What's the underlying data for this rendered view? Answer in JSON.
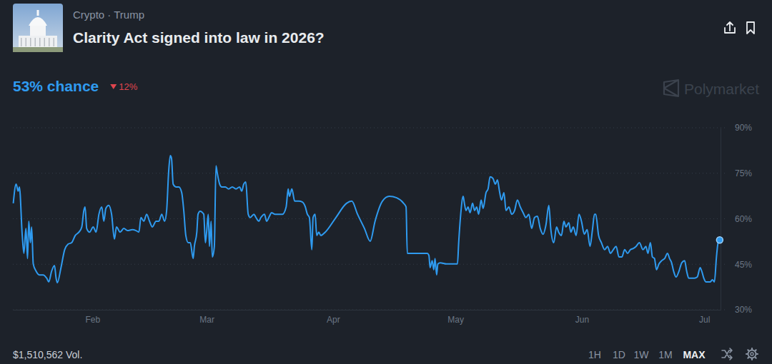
{
  "header": {
    "breadcrumb": "Crypto · Trump",
    "title": "Clarity Act signed into law in 2026?",
    "chance": "53% chance",
    "change": "12%",
    "watermark": "Polymarket"
  },
  "chart_data": {
    "type": "line",
    "color": "#2f9bf0",
    "marker": "last",
    "grid": true,
    "xlim": [
      12.5,
      186
    ],
    "xticks": [
      {
        "value": 32,
        "label": "Feb"
      },
      {
        "value": 60,
        "label": "Mar"
      },
      {
        "value": 91,
        "label": "Apr"
      },
      {
        "value": 121,
        "label": "May"
      },
      {
        "value": 152,
        "label": "Jun"
      },
      {
        "value": 182,
        "label": "Jul"
      }
    ],
    "ylim": [
      30,
      90
    ],
    "yticks": [
      {
        "value": 90,
        "label": "90%"
      },
      {
        "value": 75,
        "label": "75%"
      },
      {
        "value": 60,
        "label": "60%"
      },
      {
        "value": 45,
        "label": "45%"
      },
      {
        "value": 30,
        "label": "30%"
      }
    ],
    "x": [
      12.6,
      13.3,
      13.8,
      14.1,
      14.8,
      15.2,
      15.7,
      16.1,
      16.4,
      16.8,
      17.1,
      17.5,
      18.2,
      19.0,
      19.9,
      20.8,
      21.3,
      22.0,
      22.7,
      23.1,
      23.4,
      24.3,
      25.2,
      26.0,
      26.9,
      27.8,
      28.7,
      29.4,
      29.9,
      30.2,
      30.6,
      31.3,
      32.2,
      32.9,
      33.6,
      34.3,
      34.8,
      35.3,
      36.0,
      36.7,
      37.4,
      37.9,
      38.8,
      39.7,
      40.6,
      41.8,
      42.7,
      43.4,
      43.9,
      44.6,
      45.3,
      46.0,
      46.7,
      47.6,
      48.3,
      49.0,
      49.7,
      50.2,
      50.7,
      51.1,
      51.4,
      51.8,
      52.5,
      53.2,
      53.9,
      54.4,
      54.9,
      55.5,
      56.0,
      56.7,
      57.0,
      57.6,
      57.9,
      58.4,
      59.3,
      59.7,
      60.0,
      60.4,
      60.7,
      61.1,
      61.4,
      61.9,
      62.3,
      62.6,
      63.2,
      63.7,
      64.6,
      65.4,
      66.3,
      67.2,
      68.1,
      68.6,
      69.1,
      69.6,
      70.2,
      70.7,
      71.6,
      72.1,
      72.8,
      73.3,
      74.2,
      74.7,
      75.4,
      75.9,
      76.8,
      77.7,
      78.6,
      79.5,
      80.0,
      80.3,
      80.9,
      81.6,
      82.6,
      83.5,
      84.2,
      84.7,
      85.2,
      85.8,
      86.1,
      86.6,
      87.0,
      87.5,
      88.0,
      89.1,
      91.7,
      94.3,
      95.6,
      97.0,
      98.7,
      100.1,
      101.3,
      103.1,
      104.8,
      106.6,
      108.3,
      108.9,
      109.2,
      111.0,
      112.7,
      114.1,
      114.5,
      114.8,
      115.3,
      115.7,
      116.0,
      116.4,
      116.7,
      117.3,
      118.8,
      121.5,
      121.8,
      122.3,
      122.9,
      123.2,
      123.6,
      124.1,
      124.6,
      125.2,
      125.7,
      126.2,
      126.7,
      127.3,
      127.8,
      128.5,
      129.0,
      129.5,
      130.2,
      130.8,
      131.3,
      131.8,
      132.3,
      132.9,
      133.4,
      134.1,
      134.8,
      135.5,
      136.2,
      136.9,
      137.6,
      138.3,
      139.0,
      139.7,
      140.4,
      141.1,
      141.8,
      142.5,
      143.2,
      143.9,
      144.4,
      145.1,
      145.8,
      146.3,
      147.0,
      147.6,
      148.1,
      148.8,
      149.3,
      149.9,
      150.6,
      151.3,
      151.9,
      152.6,
      153.3,
      154.0,
      154.6,
      155.1,
      155.4,
      156.1,
      156.8,
      157.6,
      158.3,
      159.0,
      159.7,
      160.4,
      161.1,
      161.8,
      162.5,
      163.2,
      163.9,
      164.6,
      165.3,
      166.1,
      167.0,
      167.7,
      168.2,
      168.8,
      169.3,
      169.8,
      170.3,
      170.9,
      171.6,
      172.3,
      173.0,
      173.5,
      174.0,
      174.5,
      175.1,
      175.8,
      176.5,
      177.2,
      177.7,
      178.2,
      179.6,
      180.3,
      181.0,
      181.4,
      181.9,
      182.4,
      183.5,
      184.0,
      184.5,
      185.0,
      185.4,
      185.8
    ],
    "values": [
      65.1,
      71.4,
      69.1,
      70.5,
      54.5,
      48.6,
      56.8,
      46.9,
      59.2,
      52.1,
      57.3,
      45.1,
      42.7,
      41.5,
      41.5,
      40.4,
      39.2,
      42.7,
      44.6,
      40.4,
      38.9,
      43.9,
      49.8,
      51.6,
      52.1,
      54.5,
      55.6,
      57.3,
      62.7,
      63.9,
      56.8,
      55.6,
      57.3,
      55.6,
      61.5,
      63.9,
      59.2,
      63.4,
      64.4,
      61.5,
      53.3,
      57.3,
      55.6,
      56.8,
      56.1,
      56.4,
      56.1,
      55.6,
      60.4,
      59.2,
      61.5,
      59.2,
      57.3,
      59.2,
      59.2,
      61.5,
      59.2,
      62.7,
      75.6,
      80.8,
      79.9,
      71.4,
      70.5,
      70.5,
      68.6,
      62.7,
      54.5,
      52.1,
      52.1,
      46.9,
      50.9,
      55.6,
      61.5,
      62.5,
      61.5,
      52.1,
      55.6,
      61.5,
      50.9,
      59.2,
      47.4,
      50.9,
      77.5,
      75.2,
      71.4,
      70.5,
      70.5,
      69.8,
      70.5,
      69.8,
      70.5,
      69.1,
      71.4,
      72.1,
      61.5,
      60.4,
      61.5,
      60.4,
      59.2,
      60.4,
      61.5,
      59.2,
      60.8,
      62.0,
      61.5,
      61.5,
      61.5,
      63.9,
      69.8,
      67.4,
      69.8,
      65.8,
      65.8,
      65.5,
      63.9,
      61.5,
      60.4,
      49.8,
      60.4,
      61.5,
      54.5,
      55.6,
      54.5,
      55.6,
      60.4,
      65.1,
      65.8,
      61.5,
      56.8,
      52.6,
      59.2,
      65.8,
      67.4,
      66.9,
      65.1,
      63.9,
      48.6,
      48.6,
      48.6,
      48.6,
      47.9,
      43.9,
      46.2,
      43.2,
      46.9,
      41.5,
      45.1,
      45.5,
      45.1,
      45.1,
      52.1,
      61.5,
      67.4,
      65.1,
      62.7,
      63.9,
      62.0,
      65.1,
      62.7,
      63.9,
      61.5,
      66.2,
      63.4,
      68.6,
      69.8,
      73.8,
      73.3,
      71.4,
      72.8,
      69.1,
      66.2,
      68.6,
      62.7,
      63.9,
      61.5,
      62.7,
      66.2,
      63.9,
      62.0,
      60.4,
      61.5,
      56.8,
      60.4,
      60.8,
      56.8,
      54.9,
      58.0,
      64.4,
      56.4,
      52.1,
      57.3,
      55.6,
      54.5,
      59.2,
      57.3,
      58.7,
      55.6,
      57.3,
      54.5,
      61.5,
      59.2,
      54.9,
      56.4,
      50.9,
      56.4,
      61.5,
      61.5,
      54.5,
      52.1,
      49.8,
      50.9,
      48.6,
      49.8,
      50.9,
      47.4,
      47.4,
      49.8,
      48.6,
      49.8,
      50.2,
      50.9,
      52.1,
      49.8,
      50.9,
      48.6,
      52.1,
      47.4,
      46.9,
      43.2,
      45.1,
      46.2,
      46.9,
      48.6,
      46.9,
      45.5,
      42.7,
      40.8,
      42.7,
      45.5,
      46.2,
      42.7,
      40.4,
      40.4,
      40.8,
      43.9,
      42.7,
      40.4,
      39.2,
      39.2,
      39.9,
      39.2,
      47.4,
      52.1,
      53
    ]
  },
  "footer": {
    "volume": "$1,510,562 Vol.",
    "ranges": [
      "1H",
      "1D",
      "1W",
      "1M",
      "MAX"
    ],
    "selected": "MAX"
  }
}
